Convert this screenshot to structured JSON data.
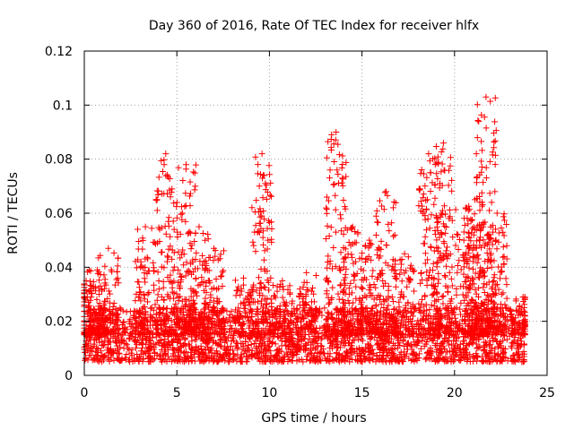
{
  "chart_data": {
    "type": "scatter",
    "title": "Day 360 of 2016, Rate Of TEC Index for receiver hlfx",
    "xlabel": "GPS time / hours",
    "ylabel": "ROTI / TECUs",
    "xlim": [
      0,
      25
    ],
    "ylim": [
      0,
      0.12
    ],
    "xticks": [
      0,
      5,
      10,
      15,
      20,
      25
    ],
    "xtick_labels": [
      "0",
      "5",
      "10",
      "15",
      "20",
      "25"
    ],
    "yticks": [
      0,
      0.02,
      0.04,
      0.06,
      0.08,
      0.1,
      0.12
    ],
    "ytick_labels": [
      "0",
      "0.02",
      "0.04",
      "0.06",
      "0.08",
      "0.1",
      "0.12"
    ],
    "grid": true,
    "marker": "+",
    "color": "#ff0000",
    "x_range": [
      0,
      23.8
    ],
    "baseline_band": [
      0.005,
      0.025
    ],
    "notable_peaks": [
      {
        "x": 0.1,
        "y": 0.035
      },
      {
        "x": 0.7,
        "y": 0.039
      },
      {
        "x": 1.3,
        "y": 0.047
      },
      {
        "x": 3.3,
        "y": 0.055
      },
      {
        "x": 4.4,
        "y": 0.082
      },
      {
        "x": 5.5,
        "y": 0.078
      },
      {
        "x": 6.2,
        "y": 0.055
      },
      {
        "x": 7.0,
        "y": 0.047
      },
      {
        "x": 8.6,
        "y": 0.036
      },
      {
        "x": 9.6,
        "y": 0.082
      },
      {
        "x": 10.7,
        "y": 0.035
      },
      {
        "x": 12.0,
        "y": 0.038
      },
      {
        "x": 13.6,
        "y": 0.09
      },
      {
        "x": 14.5,
        "y": 0.055
      },
      {
        "x": 15.4,
        "y": 0.05
      },
      {
        "x": 16.3,
        "y": 0.068
      },
      {
        "x": 17.3,
        "y": 0.045
      },
      {
        "x": 18.6,
        "y": 0.082
      },
      {
        "x": 19.4,
        "y": 0.086
      },
      {
        "x": 20.6,
        "y": 0.062
      },
      {
        "x": 21.1,
        "y": 0.065
      },
      {
        "x": 21.7,
        "y": 0.103
      },
      {
        "x": 22.3,
        "y": 0.06
      },
      {
        "x": 23.7,
        "y": 0.029
      }
    ]
  }
}
